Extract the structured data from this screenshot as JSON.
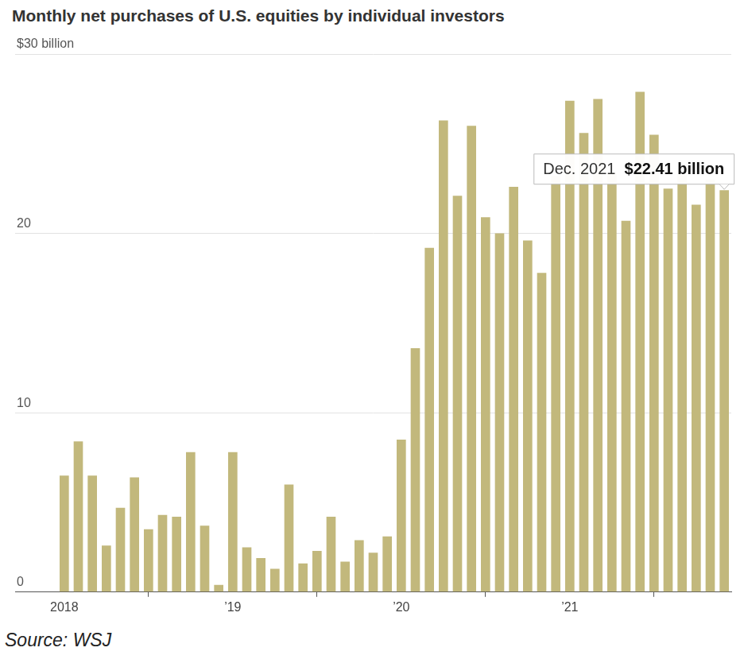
{
  "chart_data": {
    "type": "bar",
    "title": "Monthly net purchases of U.S. equities by individual investors",
    "source": "Source: WSJ",
    "categories": [
      "2018",
      null,
      null,
      null,
      null,
      null,
      null,
      null,
      null,
      null,
      null,
      null,
      "’19",
      null,
      null,
      null,
      null,
      null,
      null,
      null,
      null,
      null,
      null,
      null,
      "’20",
      null,
      null,
      null,
      null,
      null,
      null,
      null,
      null,
      null,
      null,
      null,
      "’21",
      null,
      null,
      null,
      null,
      null,
      null,
      null,
      null,
      null,
      null,
      null
    ],
    "values": [
      6.5,
      8.4,
      6.5,
      2.6,
      4.7,
      6.4,
      3.5,
      4.3,
      4.2,
      7.8,
      3.7,
      0.4,
      7.8,
      2.5,
      1.9,
      1.3,
      6.0,
      1.6,
      2.3,
      4.2,
      1.7,
      2.9,
      2.2,
      3.1,
      8.5,
      13.6,
      19.2,
      26.3,
      22.1,
      26.0,
      20.9,
      20.0,
      22.6,
      19.6,
      17.8,
      23.2,
      27.4,
      25.6,
      27.5,
      23.4,
      20.7,
      27.9,
      25.5,
      22.5,
      23.3,
      21.6,
      23.0,
      22.41
    ],
    "color": "#c2b87c",
    "ylim": [
      0,
      30
    ],
    "yticks": [
      0,
      10,
      20,
      {
        "value": 30,
        "label": "$30 billion"
      }
    ],
    "grid": true,
    "annotation": {
      "label": "Dec. 2021",
      "value": 22.41,
      "value_label": "$22.41 billion"
    }
  }
}
